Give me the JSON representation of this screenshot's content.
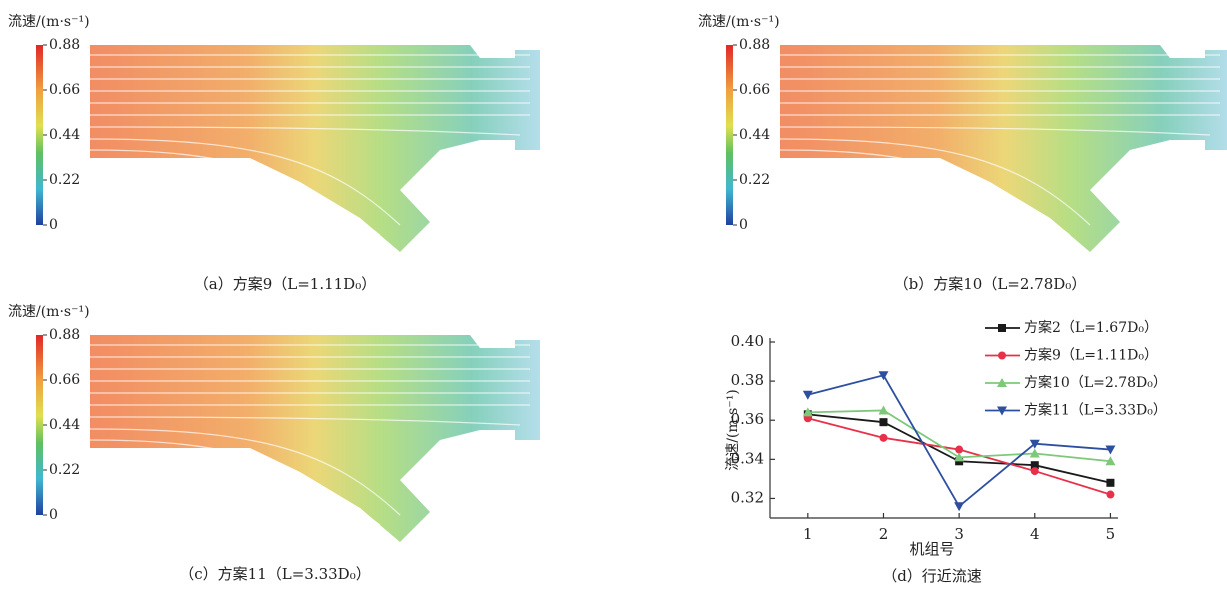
{
  "panels": [
    {
      "caption": "（a）方案9（L=1.11D₀）",
      "colorbar": {
        "title": "流速/(m·s⁻¹)",
        "range": [
          0,
          0.88
        ],
        "ticks": [
          0,
          0.22,
          0.44,
          0.66,
          0.88
        ]
      }
    },
    {
      "caption": "（b）方案10（L=2.78D₀）",
      "colorbar": {
        "title": "流速/(m·s⁻¹)",
        "range": [
          0,
          0.88
        ],
        "ticks": [
          0,
          0.22,
          0.44,
          0.66,
          0.88
        ]
      }
    },
    {
      "caption": "（c）方案11（L=3.33D₀）",
      "colorbar": {
        "title": "流速/(m·s⁻¹)",
        "range": [
          0,
          0.88
        ],
        "ticks": [
          0,
          0.22,
          0.44,
          0.66,
          0.88
        ]
      }
    }
  ],
  "chart_data": {
    "type": "line",
    "caption": "（d）行近流速",
    "x_label": "机组号",
    "y_label": "流速/(m·s⁻¹)",
    "x": [
      1,
      2,
      3,
      4,
      5
    ],
    "xlim": [
      0.5,
      5.1
    ],
    "xticks": [
      1,
      2,
      3,
      4,
      5
    ],
    "ylim": [
      0.31,
      0.4
    ],
    "yticks": [
      0.32,
      0.34,
      0.36,
      0.38,
      {
        "value": 0.4,
        "label": "0.40"
      }
    ],
    "legend": "upper right",
    "series": [
      {
        "name": "方案2（L=1.67D₀）",
        "color": "#1a1a1a",
        "marker": "square",
        "values": [
          0.363,
          0.359,
          0.339,
          0.337,
          0.328
        ]
      },
      {
        "name": "方案9（L=1.11D₀）",
        "color": "#e8304a",
        "marker": "circle",
        "values": [
          0.361,
          0.351,
          0.345,
          0.334,
          0.322
        ]
      },
      {
        "name": "方案10（L=2.78D₀）",
        "color": "#7ec87a",
        "marker": "triangle-up",
        "values": [
          0.364,
          0.365,
          0.341,
          0.343,
          0.339
        ]
      },
      {
        "name": "方案11（L=3.33D₀）",
        "color": "#2d4fa0",
        "marker": "triangle-down",
        "values": [
          0.373,
          0.383,
          0.316,
          0.348,
          0.345
        ]
      }
    ]
  }
}
